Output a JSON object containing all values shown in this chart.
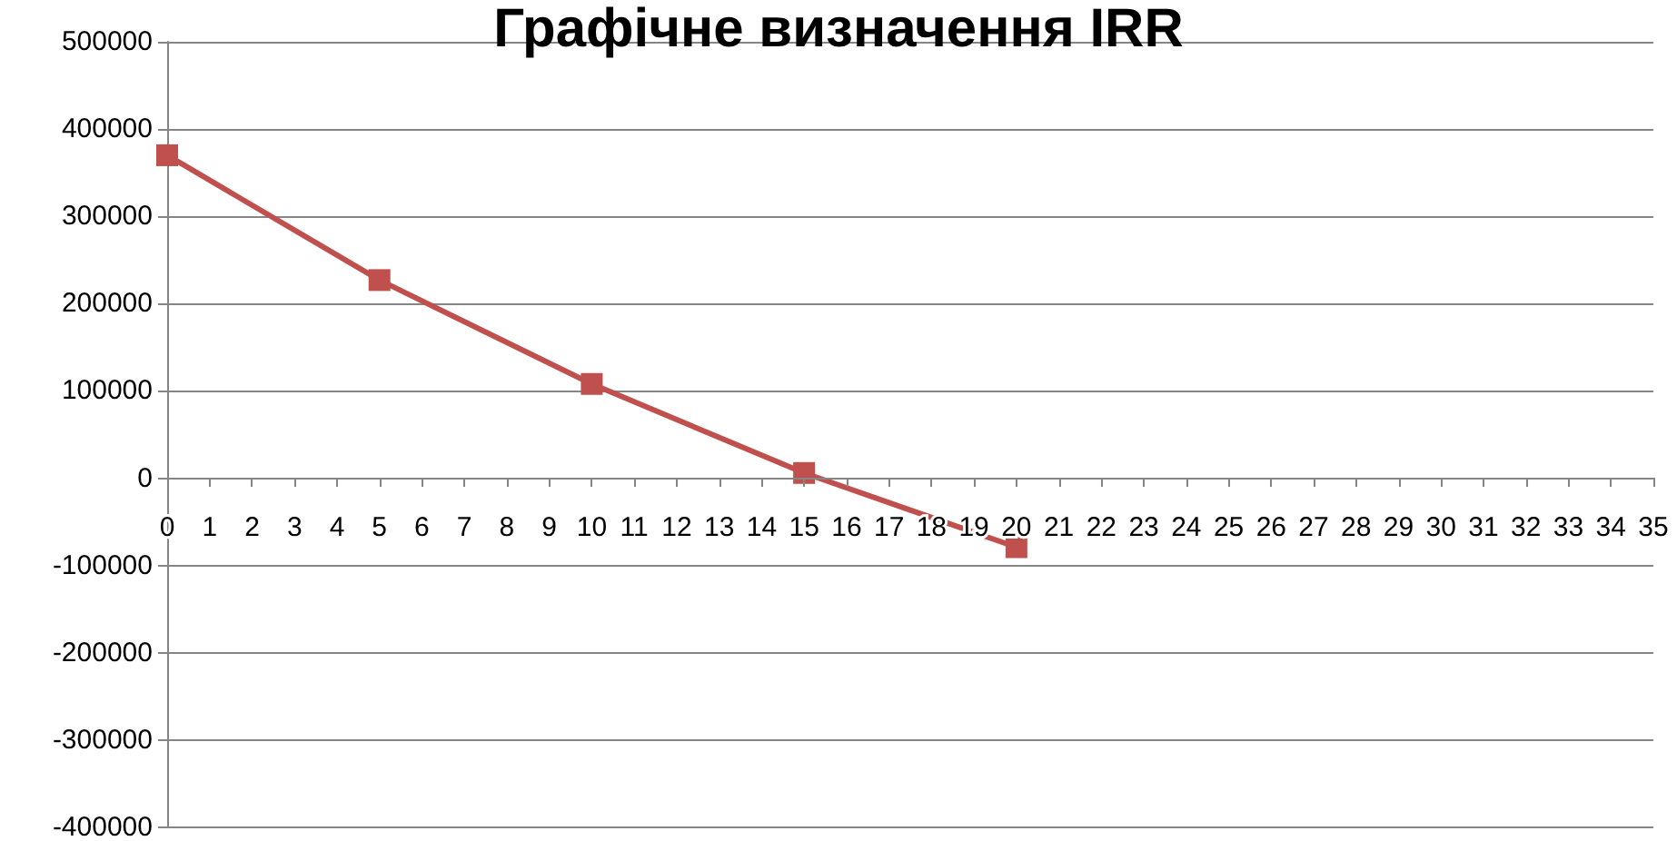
{
  "chart_data": {
    "type": "line",
    "title": "Графічне визначення IRR",
    "x": [
      0,
      5,
      10,
      15,
      20
    ],
    "series": [
      {
        "color": "#c0504d",
        "values": [
          370000,
          227000,
          108000,
          6000,
          -79000
        ]
      }
    ],
    "xlim": [
      0,
      35
    ],
    "xticks": [
      0,
      1,
      2,
      3,
      4,
      5,
      6,
      7,
      8,
      9,
      10,
      11,
      12,
      13,
      14,
      15,
      16,
      17,
      18,
      19,
      20,
      21,
      22,
      23,
      24,
      25,
      26,
      27,
      28,
      29,
      30,
      31,
      32,
      33,
      34,
      35
    ],
    "ylim": [
      -400000,
      500000
    ],
    "yticks": [
      -400000,
      -300000,
      -200000,
      -100000,
      0,
      100000,
      200000,
      300000,
      400000,
      500000
    ],
    "grid": "y",
    "marker": "square",
    "line_style": "solid"
  }
}
